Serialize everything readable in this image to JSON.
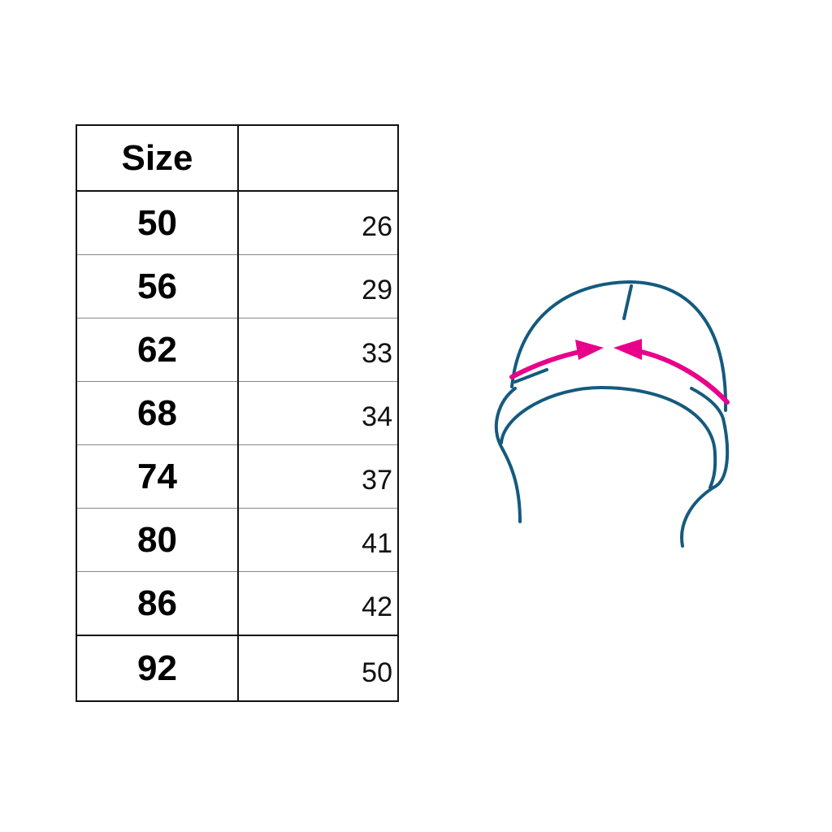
{
  "table": {
    "headers": [
      "Size",
      ""
    ],
    "rows": [
      {
        "size": "50",
        "value": "26"
      },
      {
        "size": "56",
        "value": "29"
      },
      {
        "size": "62",
        "value": "33"
      },
      {
        "size": "68",
        "value": "34"
      },
      {
        "size": "74",
        "value": "37"
      },
      {
        "size": "80",
        "value": "41"
      },
      {
        "size": "86",
        "value": "42"
      },
      {
        "size": "92",
        "value": "50"
      }
    ]
  },
  "illustration": {
    "subject": "hat-circumference-icon",
    "line_color": "#155a7e",
    "arrow_color": "#e8008a"
  }
}
